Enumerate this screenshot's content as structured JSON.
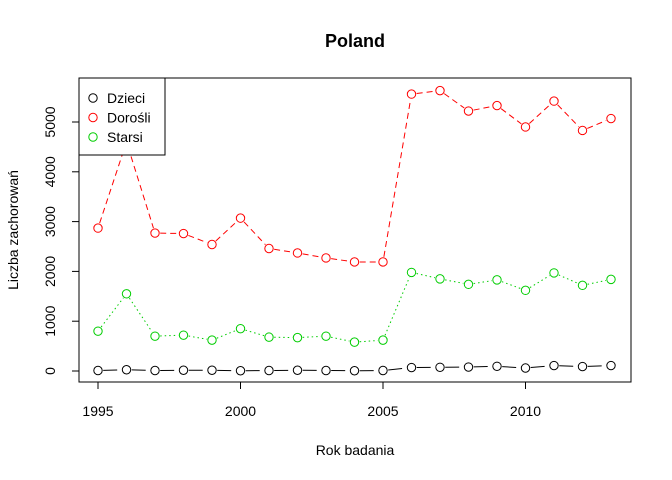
{
  "chart_data": {
    "type": "line",
    "title": "Poland",
    "xlabel": "Rok badania",
    "ylabel": "Liczba zachorowań",
    "xlim": [
      1995,
      2013
    ],
    "ylim": [
      0,
      5700
    ],
    "x_ticks": [
      "1995",
      "2000",
      "2005",
      "2010"
    ],
    "y_ticks": [
      "0",
      "1000",
      "2000",
      "3000",
      "4000",
      "5000"
    ],
    "grid": false,
    "legend_position": "top-left",
    "x": [
      1995,
      1996,
      1997,
      1998,
      1999,
      2000,
      2001,
      2002,
      2003,
      2004,
      2005,
      2006,
      2007,
      2008,
      2009,
      2010,
      2011,
      2012,
      2013
    ],
    "series": [
      {
        "name": "Dzieci",
        "color": "#000000",
        "linestyle": "longdash",
        "values": [
          10,
          25,
          10,
          15,
          15,
          5,
          10,
          15,
          10,
          5,
          10,
          70,
          75,
          80,
          95,
          60,
          110,
          90,
          110
        ]
      },
      {
        "name": "Dorośli",
        "color": "#ff0000",
        "linestyle": "dashed",
        "values": [
          2870,
          4600,
          2770,
          2760,
          2540,
          3070,
          2460,
          2370,
          2270,
          2190,
          2190,
          5560,
          5630,
          5220,
          5330,
          4900,
          5420,
          4830,
          5070
        ]
      },
      {
        "name": "Starsi",
        "color": "#00cd00",
        "linestyle": "dotted",
        "values": [
          800,
          1550,
          700,
          720,
          620,
          850,
          680,
          670,
          700,
          580,
          620,
          1980,
          1850,
          1740,
          1830,
          1620,
          1970,
          1720,
          1840
        ]
      }
    ]
  }
}
